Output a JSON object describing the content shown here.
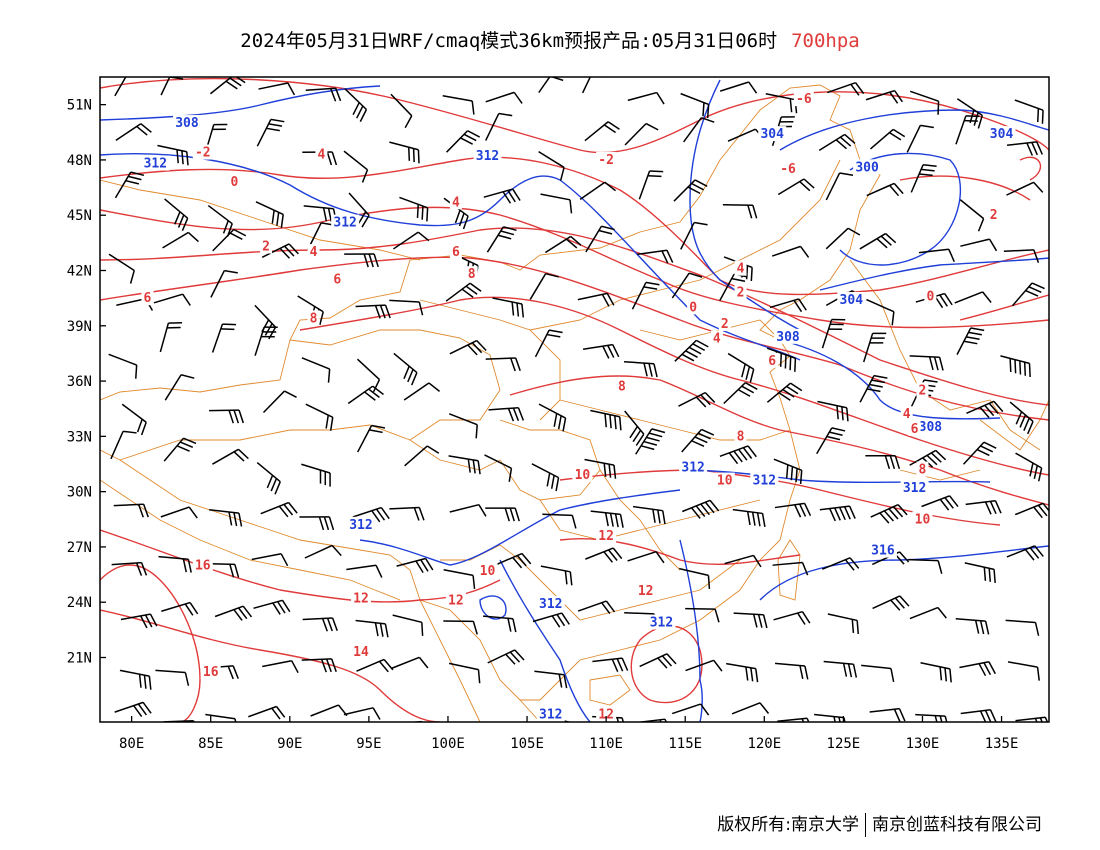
{
  "header": {
    "title": "2024年05月31日WRF/cmaq模式36km预报产品:05月31日06时",
    "level": "700hpa"
  },
  "map": {
    "lat_ticks": [
      "51N",
      "48N",
      "45N",
      "42N",
      "39N",
      "36N",
      "33N",
      "30N",
      "27N",
      "24N",
      "21N"
    ],
    "lon_ticks": [
      "80E",
      "85E",
      "90E",
      "95E",
      "100E",
      "105E",
      "110E",
      "115E",
      "120E",
      "125E",
      "130E",
      "135E"
    ],
    "lon_range": [
      78,
      138
    ],
    "lat_range": [
      17.5,
      52.5
    ],
    "colors": {
      "temperature": "#e03a3a",
      "height": "#1f3fd8",
      "border": "#e08a2e",
      "wind": "#000000"
    },
    "height_labels": [
      {
        "text": "308",
        "lon": 83.5,
        "lat": 50.0
      },
      {
        "text": "312",
        "lon": 81.5,
        "lat": 47.8
      },
      {
        "text": "312",
        "lon": 93.5,
        "lat": 44.6
      },
      {
        "text": "312",
        "lon": 102.5,
        "lat": 48.2
      },
      {
        "text": "304",
        "lon": 120.5,
        "lat": 49.4
      },
      {
        "text": "304",
        "lon": 135.0,
        "lat": 49.4
      },
      {
        "text": "300",
        "lon": 126.5,
        "lat": 47.6
      },
      {
        "text": "304",
        "lon": 125.5,
        "lat": 40.4
      },
      {
        "text": "308",
        "lon": 121.5,
        "lat": 38.4
      },
      {
        "text": "308",
        "lon": 130.5,
        "lat": 33.5
      },
      {
        "text": "312",
        "lon": 115.5,
        "lat": 31.3
      },
      {
        "text": "312",
        "lon": 120.0,
        "lat": 30.6
      },
      {
        "text": "312",
        "lon": 129.5,
        "lat": 30.2
      },
      {
        "text": "312",
        "lon": 94.5,
        "lat": 28.2
      },
      {
        "text": "312",
        "lon": 106.5,
        "lat": 23.9
      },
      {
        "text": "312",
        "lon": 113.5,
        "lat": 22.9
      },
      {
        "text": "316",
        "lon": 127.5,
        "lat": 26.8
      },
      {
        "text": "312",
        "lon": 106.5,
        "lat": 17.9
      }
    ],
    "temp_labels": [
      {
        "text": "-2",
        "lon": 84.5,
        "lat": 48.4
      },
      {
        "text": "0",
        "lon": 86.5,
        "lat": 46.8
      },
      {
        "text": "4",
        "lon": 92.0,
        "lat": 48.3
      },
      {
        "text": "4",
        "lon": 100.5,
        "lat": 45.7
      },
      {
        "text": "2",
        "lon": 88.5,
        "lat": 43.3
      },
      {
        "text": "4",
        "lon": 91.5,
        "lat": 43.0
      },
      {
        "text": "6",
        "lon": 93.0,
        "lat": 41.5
      },
      {
        "text": "6",
        "lon": 81.0,
        "lat": 40.5
      },
      {
        "text": "6",
        "lon": 100.5,
        "lat": 43.0
      },
      {
        "text": "8",
        "lon": 101.5,
        "lat": 41.8
      },
      {
        "text": "8",
        "lon": 91.5,
        "lat": 39.4
      },
      {
        "text": "-2",
        "lon": 110.0,
        "lat": 48.0
      },
      {
        "text": "-6",
        "lon": 122.5,
        "lat": 51.3
      },
      {
        "text": "-6",
        "lon": 121.5,
        "lat": 47.5
      },
      {
        "text": "2",
        "lon": 134.5,
        "lat": 45.0
      },
      {
        "text": "0",
        "lon": 130.5,
        "lat": 40.6
      },
      {
        "text": "4",
        "lon": 118.5,
        "lat": 42.1
      },
      {
        "text": "2",
        "lon": 118.5,
        "lat": 40.8
      },
      {
        "text": "0",
        "lon": 115.5,
        "lat": 40.0
      },
      {
        "text": "2",
        "lon": 117.5,
        "lat": 39.1
      },
      {
        "text": "4",
        "lon": 117.0,
        "lat": 38.3
      },
      {
        "text": "6",
        "lon": 120.5,
        "lat": 37.1
      },
      {
        "text": "8",
        "lon": 111.0,
        "lat": 35.7
      },
      {
        "text": "8",
        "lon": 118.5,
        "lat": 33.0
      },
      {
        "text": "2",
        "lon": 130.0,
        "lat": 35.5
      },
      {
        "text": "4",
        "lon": 129.0,
        "lat": 34.2
      },
      {
        "text": "6",
        "lon": 129.5,
        "lat": 33.4
      },
      {
        "text": "8",
        "lon": 130.0,
        "lat": 31.2
      },
      {
        "text": "10",
        "lon": 108.5,
        "lat": 30.9
      },
      {
        "text": "10",
        "lon": 117.5,
        "lat": 30.6
      },
      {
        "text": "10",
        "lon": 130.0,
        "lat": 28.5
      },
      {
        "text": "12",
        "lon": 110.0,
        "lat": 27.6
      },
      {
        "text": "12",
        "lon": 112.5,
        "lat": 24.6
      },
      {
        "text": "12",
        "lon": 100.5,
        "lat": 24.1
      },
      {
        "text": "12",
        "lon": 94.5,
        "lat": 24.2
      },
      {
        "text": "10",
        "lon": 102.5,
        "lat": 25.7
      },
      {
        "text": "16",
        "lon": 84.5,
        "lat": 26.0
      },
      {
        "text": "14",
        "lon": 94.5,
        "lat": 21.3
      },
      {
        "text": "16",
        "lon": 85.0,
        "lat": 20.2
      },
      {
        "text": "12",
        "lon": 110.0,
        "lat": 17.9
      }
    ]
  },
  "footer": {
    "copyright": "版权所有:南京大学",
    "company": "南京创蓝科技有限公司"
  }
}
